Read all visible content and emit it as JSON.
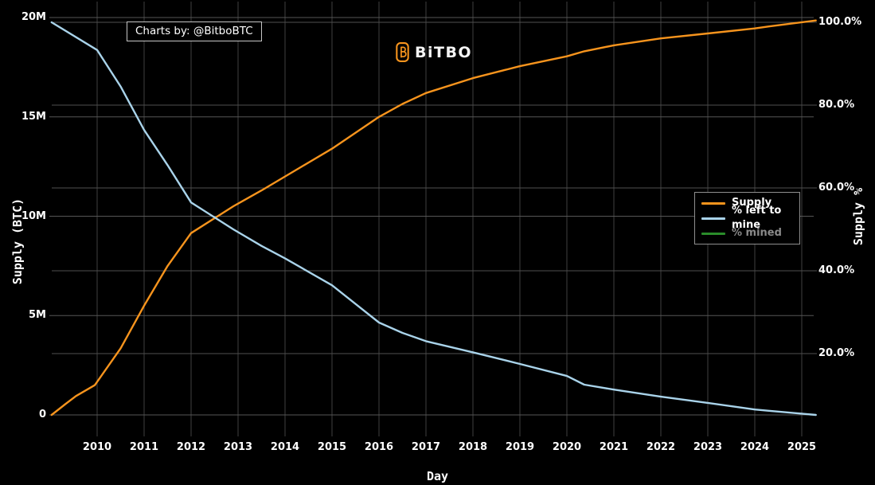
{
  "branding": {
    "watermark": "Charts by: @BitboBTC",
    "logo_text": "BiTBO"
  },
  "colors": {
    "background": "#000000",
    "supply_line": "#f7941d",
    "left_to_mine_line": "#a9d3ea",
    "mined_line": "#2a8c2a",
    "grid_horizontal": "#565656",
    "grid_vertical": "#3f3f3f",
    "muted_legend_text": "#8a8a8a",
    "text": "#ffffff"
  },
  "legend": {
    "items": [
      {
        "label": "Supply",
        "color": "#f7941d",
        "active": true
      },
      {
        "label": "% left to mine",
        "color": "#a9d3ea",
        "active": true
      },
      {
        "label": "% mined",
        "color": "#2a8c2a",
        "active": false
      }
    ]
  },
  "chart_data": {
    "type": "line",
    "title": "",
    "xlabel": "Day",
    "x_range_years": [
      2009.03,
      2025.3
    ],
    "x_ticks": [
      {
        "label": "2010",
        "value": 2010
      },
      {
        "label": "2011",
        "value": 2011
      },
      {
        "label": "2012",
        "value": 2012
      },
      {
        "label": "2013",
        "value": 2013
      },
      {
        "label": "2014",
        "value": 2014
      },
      {
        "label": "2015",
        "value": 2015
      },
      {
        "label": "2016",
        "value": 2016
      },
      {
        "label": "2017",
        "value": 2017
      },
      {
        "label": "2018",
        "value": 2018
      },
      {
        "label": "2019",
        "value": 2019
      },
      {
        "label": "2020",
        "value": 2020
      },
      {
        "label": "2021",
        "value": 2021
      },
      {
        "label": "2022",
        "value": 2022
      },
      {
        "label": "2023",
        "value": 2023
      },
      {
        "label": "2024",
        "value": 2024
      },
      {
        "label": "2025",
        "value": 2025
      }
    ],
    "y_left": {
      "label": "Supply (BTC)",
      "range_m_btc": [
        0,
        20
      ],
      "ticks": [
        {
          "label": "20M",
          "value": 20
        },
        {
          "label": "15M",
          "value": 15
        },
        {
          "label": "10M",
          "value": 10
        },
        {
          "label": "5M",
          "value": 5
        },
        {
          "label": "0",
          "value": 0
        }
      ]
    },
    "y_right": {
      "label": "Supply %",
      "range_pct": [
        0,
        100
      ],
      "ticks": [
        {
          "label": "100.0%",
          "value": 100
        },
        {
          "label": "80.0%",
          "value": 80
        },
        {
          "label": "60.0%",
          "value": 60
        },
        {
          "label": "40.0%",
          "value": 40
        },
        {
          "label": "20.0%",
          "value": 20
        }
      ]
    },
    "grid": true,
    "legend_position": "right-middle",
    "series": [
      {
        "name": "Supply",
        "axis": "left",
        "unit": "M BTC",
        "color": "#f7941d",
        "visible": true,
        "points": [
          [
            2009.03,
            0
          ],
          [
            2009.3,
            0.5
          ],
          [
            2009.55,
            0.95
          ],
          [
            2009.95,
            1.5
          ],
          [
            2010.5,
            3.35
          ],
          [
            2011,
            5.5
          ],
          [
            2011.5,
            7.5
          ],
          [
            2012,
            9.15
          ],
          [
            2012.9,
            10.5
          ],
          [
            2013.5,
            11.3
          ],
          [
            2014,
            12.0
          ],
          [
            2015,
            13.4
          ],
          [
            2016,
            15.0
          ],
          [
            2016.5,
            15.65
          ],
          [
            2017,
            16.2
          ],
          [
            2018,
            16.95
          ],
          [
            2019,
            17.55
          ],
          [
            2020,
            18.05
          ],
          [
            2020.37,
            18.3
          ],
          [
            2021,
            18.6
          ],
          [
            2022,
            18.95
          ],
          [
            2023,
            19.2
          ],
          [
            2024,
            19.45
          ],
          [
            2024.3,
            19.55
          ],
          [
            2025.3,
            19.85
          ]
        ]
      },
      {
        "name": "% left to mine",
        "axis": "right",
        "unit": "%",
        "color": "#a9d3ea",
        "visible": true,
        "points": [
          [
            2009.03,
            100
          ],
          [
            2010,
            93.3
          ],
          [
            2010.5,
            84.5
          ],
          [
            2011,
            74
          ],
          [
            2011.5,
            65.5
          ],
          [
            2012,
            56.5
          ],
          [
            2012.9,
            50
          ],
          [
            2013.5,
            46
          ],
          [
            2014,
            43
          ],
          [
            2015,
            36.5
          ],
          [
            2016,
            27.5
          ],
          [
            2016.5,
            25
          ],
          [
            2017,
            23
          ],
          [
            2018,
            20.3
          ],
          [
            2019,
            17.5
          ],
          [
            2020,
            14.6
          ],
          [
            2020.37,
            12.5
          ],
          [
            2021,
            11.3
          ],
          [
            2022,
            9.6
          ],
          [
            2023,
            8.1
          ],
          [
            2024,
            6.5
          ],
          [
            2024.3,
            6.2
          ],
          [
            2025.3,
            5.2
          ]
        ]
      },
      {
        "name": "% mined",
        "axis": "right",
        "unit": "%",
        "color": "#2a8c2a",
        "visible": false,
        "points": []
      }
    ]
  }
}
